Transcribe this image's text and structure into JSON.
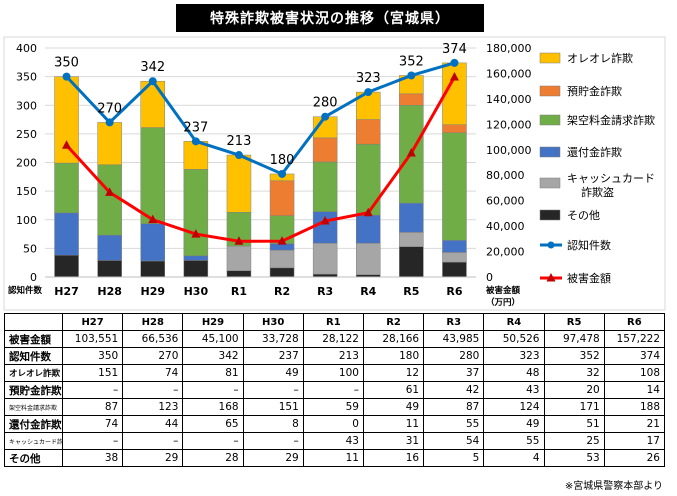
{
  "title": "特殊詐欺被害状況の推移（宮城県）",
  "chart_data": {
    "type": "bar",
    "stacked": true,
    "categories": [
      "H27",
      "H28",
      "H29",
      "H30",
      "R1",
      "R2",
      "R3",
      "R4",
      "R5",
      "R6"
    ],
    "y_left": {
      "range": [
        0,
        400
      ],
      "ticks": [
        0,
        50,
        100,
        150,
        200,
        250,
        300,
        350,
        400
      ],
      "label": "認知件数"
    },
    "y_right": {
      "range": [
        0,
        180000
      ],
      "ticks": [
        "0",
        "20,000",
        "40,000",
        "60,000",
        "80,000",
        "100,000",
        "120,000",
        "140,000",
        "160,000",
        "180,000"
      ],
      "label": "被害金額（万円）",
      "label_lines": [
        "被害金額",
        "（万円）"
      ]
    },
    "series": [
      {
        "name": "その他",
        "color": "#262626",
        "values": [
          38,
          29,
          28,
          29,
          11,
          16,
          5,
          4,
          53,
          26
        ]
      },
      {
        "name": "キャッシュカード詐欺盗",
        "color": "#a6a6a6",
        "values": [
          0,
          0,
          0,
          0,
          43,
          31,
          54,
          55,
          25,
          17
        ]
      },
      {
        "name": "還付金詐欺",
        "color": "#4472c4",
        "values": [
          74,
          44,
          65,
          8,
          0,
          11,
          55,
          49,
          51,
          21
        ]
      },
      {
        "name": "架空料金請求詐欺",
        "color": "#70ad47",
        "values": [
          87,
          123,
          168,
          151,
          59,
          49,
          87,
          124,
          171,
          188
        ]
      },
      {
        "name": "預貯金詐欺",
        "color": "#ed7d31",
        "values": [
          0,
          0,
          0,
          0,
          0,
          61,
          42,
          43,
          20,
          14
        ]
      },
      {
        "name": "オレオレ詐欺",
        "color": "#ffc000",
        "values": [
          151,
          74,
          81,
          49,
          100,
          12,
          37,
          48,
          32,
          108
        ]
      }
    ],
    "lines": [
      {
        "name": "認知件数",
        "axis": "left",
        "color": "#0070c0",
        "values": [
          350,
          270,
          342,
          237,
          213,
          180,
          280,
          323,
          352,
          374
        ]
      },
      {
        "name": "被害金額",
        "axis": "right",
        "color": "#ff0000",
        "values": [
          103551,
          66536,
          45100,
          33728,
          28122,
          28166,
          43985,
          50526,
          97478,
          157222
        ]
      }
    ],
    "data_labels": [
      "350",
      "270",
      "342",
      "237",
      "213",
      "180",
      "280",
      "323",
      "352",
      "374"
    ],
    "legend": [
      "オレオレ詐欺",
      "預貯金詐欺",
      "架空料金請求詐欺",
      "還付金詐欺",
      "キャッシュカード詐欺盗",
      "その他",
      "認知件数",
      "被害金額"
    ],
    "legend_lines": {
      "キャッシュカード詐欺盗": [
        "キャッシュカード",
        "詐欺盗"
      ]
    }
  },
  "table": {
    "headers": [
      "H27",
      "H28",
      "H29",
      "H30",
      "R1",
      "R2",
      "R3",
      "R4",
      "R5",
      "R6"
    ],
    "rows": [
      {
        "label": "被害金額",
        "values": [
          "103,551",
          "66,536",
          "45,100",
          "33,728",
          "28,122",
          "28,166",
          "43,985",
          "50,526",
          "97,478",
          "157,222"
        ]
      },
      {
        "label": "認知件数",
        "values": [
          "350",
          "270",
          "342",
          "237",
          "213",
          "180",
          "280",
          "323",
          "352",
          "374"
        ]
      },
      {
        "label": "オレオレ詐欺",
        "values": [
          "151",
          "74",
          "81",
          "49",
          "100",
          "12",
          "37",
          "48",
          "32",
          "108"
        ]
      },
      {
        "label": "預貯金詐欺",
        "values": [
          "–",
          "–",
          "–",
          "–",
          "–",
          "61",
          "42",
          "43",
          "20",
          "14"
        ]
      },
      {
        "label": "架空料金請求詐欺",
        "values": [
          "87",
          "123",
          "168",
          "151",
          "59",
          "49",
          "87",
          "124",
          "171",
          "188"
        ]
      },
      {
        "label": "還付金詐欺",
        "values": [
          "74",
          "44",
          "65",
          "8",
          "0",
          "11",
          "55",
          "49",
          "51",
          "21"
        ]
      },
      {
        "label": "キャッシュカード詐欺盗",
        "values": [
          "–",
          "–",
          "–",
          "–",
          "43",
          "31",
          "54",
          "55",
          "25",
          "17"
        ]
      },
      {
        "label": "その他",
        "values": [
          "38",
          "29",
          "28",
          "29",
          "11",
          "16",
          "5",
          "4",
          "53",
          "26"
        ]
      }
    ]
  },
  "source": "※宮城県警察本部より"
}
